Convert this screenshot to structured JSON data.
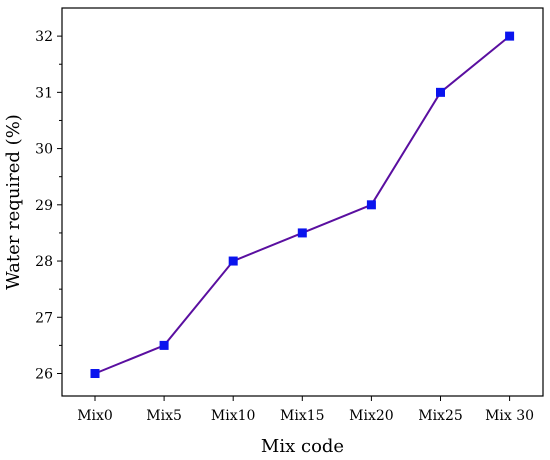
{
  "chart_data": {
    "type": "line",
    "xlabel": "Mix code",
    "ylabel": "Water required (%)",
    "categories": [
      "Mix0",
      "Mix5",
      "Mix10",
      "Mix15",
      "Mix20",
      "Mix25",
      "Mix 30"
    ],
    "series": [
      {
        "values": [
          26,
          26.5,
          28,
          28.5,
          29,
          31,
          32
        ]
      }
    ],
    "ylim": [
      25.6,
      32.5
    ],
    "yticks": [
      26,
      27,
      28,
      29,
      30,
      31,
      32
    ],
    "grid": false,
    "legend": "none",
    "line_color": "#5a0fa0",
    "marker_color": "#0a14ee",
    "marker": "square"
  }
}
